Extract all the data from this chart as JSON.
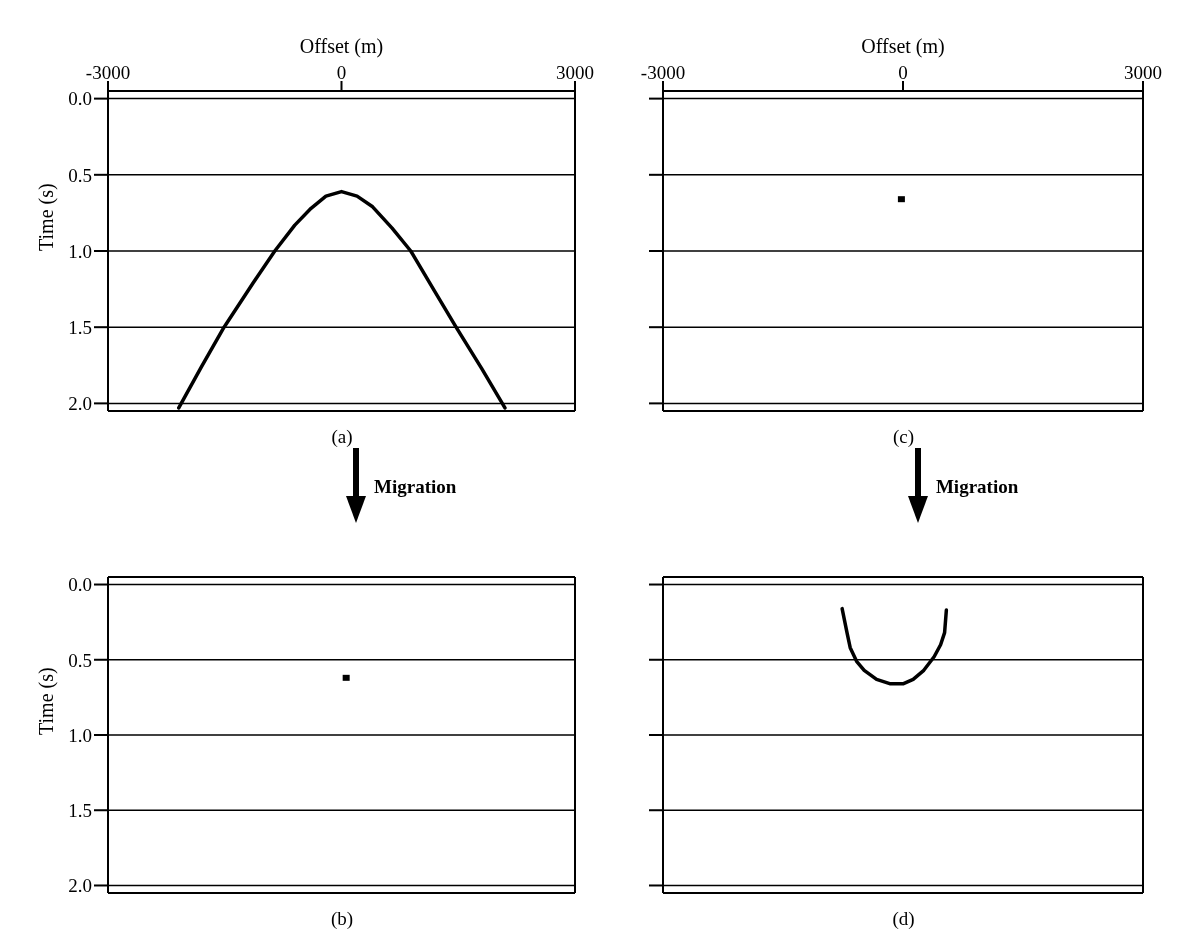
{
  "chart_data": [
    {
      "type": "line",
      "xlabel": "Offset (m)",
      "ylabel": "Time (s)",
      "xlim": [
        -3000,
        3000
      ],
      "xticks": [
        -3000,
        0,
        3000
      ],
      "ylim": [
        2.05,
        -0.05
      ],
      "yticks": [
        {
          "value": 0,
          "label": "0.0"
        },
        {
          "value": 0.5,
          "label": "0.5"
        },
        {
          "value": 1,
          "label": "1.0"
        },
        {
          "value": 1.5,
          "label": "1.5"
        },
        {
          "value": 2,
          "label": "2.0"
        }
      ],
      "grid": "y",
      "line_style": "solid",
      "annotations": [
        "(a)"
      ],
      "series": [
        {
          "color": "#000000",
          "x": [
            -2091,
            -1800,
            -1509,
            -1136,
            -857,
            -600,
            -391,
            -200,
            0,
            200,
            400,
            650,
            890,
            1192,
            1472,
            1800,
            2100
          ],
          "values": [
            2.03,
            1.76,
            1.5,
            1.21,
            1.0,
            0.83,
            0.72,
            0.64,
            0.61,
            0.64,
            0.71,
            0.85,
            1.0,
            1.26,
            1.5,
            1.77,
            2.03
          ]
        }
      ]
    },
    {
      "type": "scatter",
      "ylabel": "Time (s)",
      "xlim": [
        -3000,
        3000
      ],
      "ylim": [
        2.05,
        -0.05
      ],
      "yticks": [
        {
          "value": 0,
          "label": "0.0"
        },
        {
          "value": 0.5,
          "label": "0.5"
        },
        {
          "value": 1,
          "label": "1.0"
        },
        {
          "value": 1.5,
          "label": "1.5"
        },
        {
          "value": 2,
          "label": "2.0"
        }
      ],
      "grid": "y",
      "tick_labels": "y",
      "marker": "square",
      "annotations": [
        "(b)",
        "Migration"
      ],
      "series": [
        {
          "color": "#000000",
          "x": [
            60
          ],
          "values": [
            0.62
          ]
        }
      ]
    },
    {
      "type": "scatter",
      "xlabel": "Offset (m)",
      "xlim": [
        -3000,
        3000
      ],
      "xticks": [
        -3000,
        0,
        3000
      ],
      "ylim": [
        2.05,
        -0.05
      ],
      "yticks": [
        0,
        0.5,
        1,
        1.5,
        2
      ],
      "grid": "y",
      "tick_labels": "x",
      "marker": "square",
      "annotations": [
        "(c)"
      ],
      "series": [
        {
          "color": "#000000",
          "x": [
            -20
          ],
          "values": [
            0.66
          ]
        }
      ]
    },
    {
      "type": "line",
      "xlim": [
        -3000,
        3000
      ],
      "ylim": [
        2.05,
        -0.05
      ],
      "yticks": [
        0,
        0.5,
        1,
        1.5,
        2
      ],
      "grid": "y",
      "tick_labels": false,
      "line_style": "solid",
      "annotations": [
        "(d)",
        "Migration"
      ],
      "series": [
        {
          "color": "#000000",
          "x": [
            -761,
            -700,
            -660,
            -580,
            -485,
            -330,
            -157,
            0,
            127,
            260,
            389,
            470,
            520,
            542
          ],
          "values": [
            0.16,
            0.32,
            0.42,
            0.51,
            0.57,
            0.63,
            0.66,
            0.66,
            0.63,
            0.57,
            0.48,
            0.4,
            0.32,
            0.17
          ]
        }
      ]
    }
  ]
}
